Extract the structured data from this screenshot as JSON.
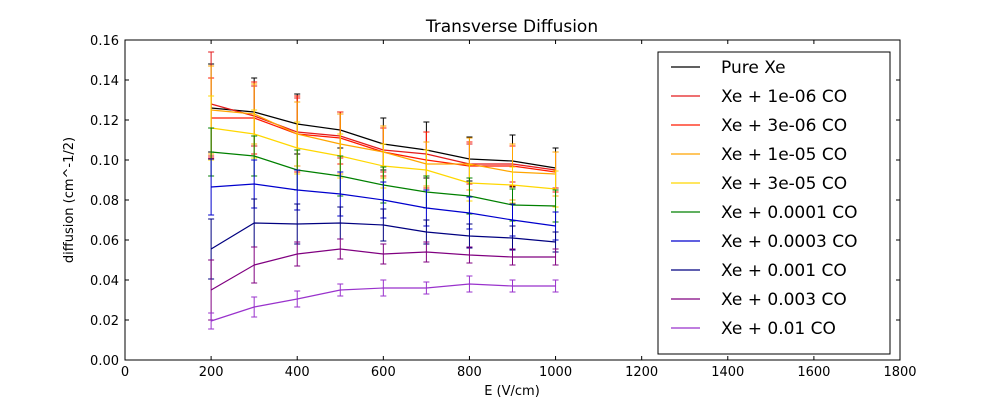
{
  "chart_data": {
    "type": "line",
    "title": "Transverse Diffusion",
    "xlabel": "E (V/cm)",
    "ylabel": "diffusion (cm^-1/2)",
    "xlim": [
      0,
      1800
    ],
    "ylim": [
      0,
      0.16
    ],
    "xticks": [
      "0",
      "200",
      "400",
      "600",
      "800",
      "1000",
      "1200",
      "1400",
      "1600",
      "1800"
    ],
    "yticks": [
      "0.00",
      "0.02",
      "0.04",
      "0.06",
      "0.08",
      "0.10",
      "0.12",
      "0.14",
      "0.16"
    ],
    "legend_position": "top-right",
    "grid": false,
    "x": [
      200,
      300,
      400,
      500,
      600,
      700,
      800,
      900,
      1000
    ],
    "series": [
      {
        "name": "Pure Xe",
        "color": "#000000",
        "values": [
          0.126,
          0.124,
          0.118,
          0.115,
          0.108,
          0.105,
          0.1005,
          0.0995,
          0.096
        ],
        "errors": [
          0.022,
          0.017,
          0.015,
          0.009,
          0.013,
          0.014,
          0.011,
          0.013,
          0.01
        ]
      },
      {
        "name": "Xe + 1e-06 CO",
        "color": "#e31a1c",
        "values": [
          0.128,
          0.122,
          0.114,
          0.112,
          0.105,
          0.103,
          0.098,
          0.098,
          0.095
        ],
        "errors": [
          0.026,
          0.015,
          0.017,
          0.011,
          0.011,
          0.011,
          0.01,
          0.009,
          0.009
        ]
      },
      {
        "name": "Xe + 3e-06 CO",
        "color": "#ff1a00",
        "values": [
          0.121,
          0.121,
          0.113,
          0.111,
          0.104,
          0.1,
          0.097,
          0.097,
          0.094
        ],
        "errors": [
          0.02,
          0.018,
          0.019,
          0.013,
          0.012,
          0.014,
          0.012,
          0.01,
          0.01
        ]
      },
      {
        "name": "Xe + 1e-05 CO",
        "color": "#ffa500",
        "values": [
          0.125,
          0.123,
          0.113,
          0.108,
          0.104,
          0.098,
          0.098,
          0.094,
          0.093
        ],
        "errors": [
          0.022,
          0.015,
          0.016,
          0.015,
          0.013,
          0.011,
          0.013,
          0.014,
          0.011
        ]
      },
      {
        "name": "Xe + 3e-05 CO",
        "color": "#ffd700",
        "values": [
          0.116,
          0.113,
          0.106,
          0.102,
          0.097,
          0.095,
          0.0885,
          0.0875,
          0.0855
        ],
        "errors": [
          0.016,
          0.012,
          0.013,
          0.011,
          0.011,
          0.01,
          0.009,
          0.009,
          0.009
        ]
      },
      {
        "name": "Xe + 0.0001 CO",
        "color": "#008000",
        "values": [
          0.104,
          0.102,
          0.095,
          0.092,
          0.0875,
          0.084,
          0.082,
          0.0775,
          0.077
        ],
        "errors": [
          0.012,
          0.01,
          0.01,
          0.01,
          0.009,
          0.008,
          0.009,
          0.008,
          0.008
        ]
      },
      {
        "name": "Xe + 0.0003 CO",
        "color": "#0000cd",
        "values": [
          0.0865,
          0.088,
          0.085,
          0.083,
          0.08,
          0.076,
          0.0735,
          0.07,
          0.067
        ],
        "errors": [
          0.014,
          0.012,
          0.01,
          0.011,
          0.009,
          0.009,
          0.008,
          0.008,
          0.007
        ]
      },
      {
        "name": "Xe + 0.001 CO",
        "color": "#000080",
        "values": [
          0.0555,
          0.0685,
          0.068,
          0.0685,
          0.0675,
          0.064,
          0.062,
          0.061,
          0.059
        ],
        "errors": [
          0.015,
          0.012,
          0.01,
          0.008,
          0.008,
          0.006,
          0.006,
          0.006,
          0.005
        ]
      },
      {
        "name": "Xe + 0.003 CO",
        "color": "#800080",
        "values": [
          0.035,
          0.0475,
          0.053,
          0.0555,
          0.053,
          0.054,
          0.0525,
          0.0515,
          0.0515
        ],
        "errors": [
          0.015,
          0.009,
          0.006,
          0.005,
          0.005,
          0.005,
          0.004,
          0.004,
          0.004
        ]
      },
      {
        "name": "Xe + 0.01 CO",
        "color": "#9932cc",
        "values": [
          0.0195,
          0.0265,
          0.0305,
          0.035,
          0.036,
          0.036,
          0.038,
          0.037,
          0.037
        ],
        "errors": [
          0.004,
          0.005,
          0.004,
          0.003,
          0.004,
          0.003,
          0.004,
          0.003,
          0.003
        ]
      }
    ]
  }
}
